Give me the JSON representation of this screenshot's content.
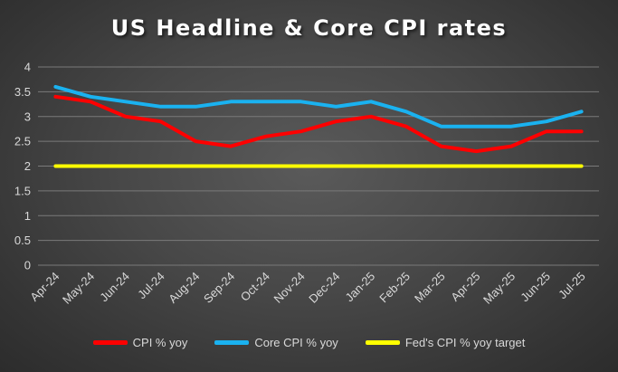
{
  "chart_data": {
    "type": "line",
    "title": "US Headline & Core CPI rates",
    "xlabel": "",
    "ylabel": "",
    "categories": [
      "Apr-24",
      "May-24",
      "Jun-24",
      "Jul-24",
      "Aug-24",
      "Sep-24",
      "Oct-24",
      "Nov-24",
      "Dec-24",
      "Jan-25",
      "Feb-25",
      "Mar-25",
      "Apr-25",
      "May-25",
      "Jun-25",
      "Jul-25"
    ],
    "ylim": [
      0,
      4
    ],
    "yticks": [
      "0",
      "0.5",
      "1",
      "1.5",
      "2",
      "2.5",
      "3",
      "3.5",
      "4"
    ],
    "grid": true,
    "legend_position": "bottom",
    "series": [
      {
        "name": "CPI % yoy",
        "color": "#ff0000",
        "values": [
          3.4,
          3.3,
          3.0,
          2.9,
          2.5,
          2.4,
          2.6,
          2.7,
          2.9,
          3.0,
          2.8,
          2.4,
          2.3,
          2.4,
          2.7,
          2.7
        ]
      },
      {
        "name": "Core CPI % yoy",
        "color": "#1ab2f0",
        "values": [
          3.6,
          3.4,
          3.3,
          3.2,
          3.2,
          3.3,
          3.3,
          3.3,
          3.2,
          3.3,
          3.1,
          2.8,
          2.8,
          2.8,
          2.9,
          3.1
        ]
      },
      {
        "name": "Fed's CPI % yoy target",
        "color": "#ffff00",
        "values": [
          2,
          2,
          2,
          2,
          2,
          2,
          2,
          2,
          2,
          2,
          2,
          2,
          2,
          2,
          2,
          2
        ]
      }
    ]
  }
}
